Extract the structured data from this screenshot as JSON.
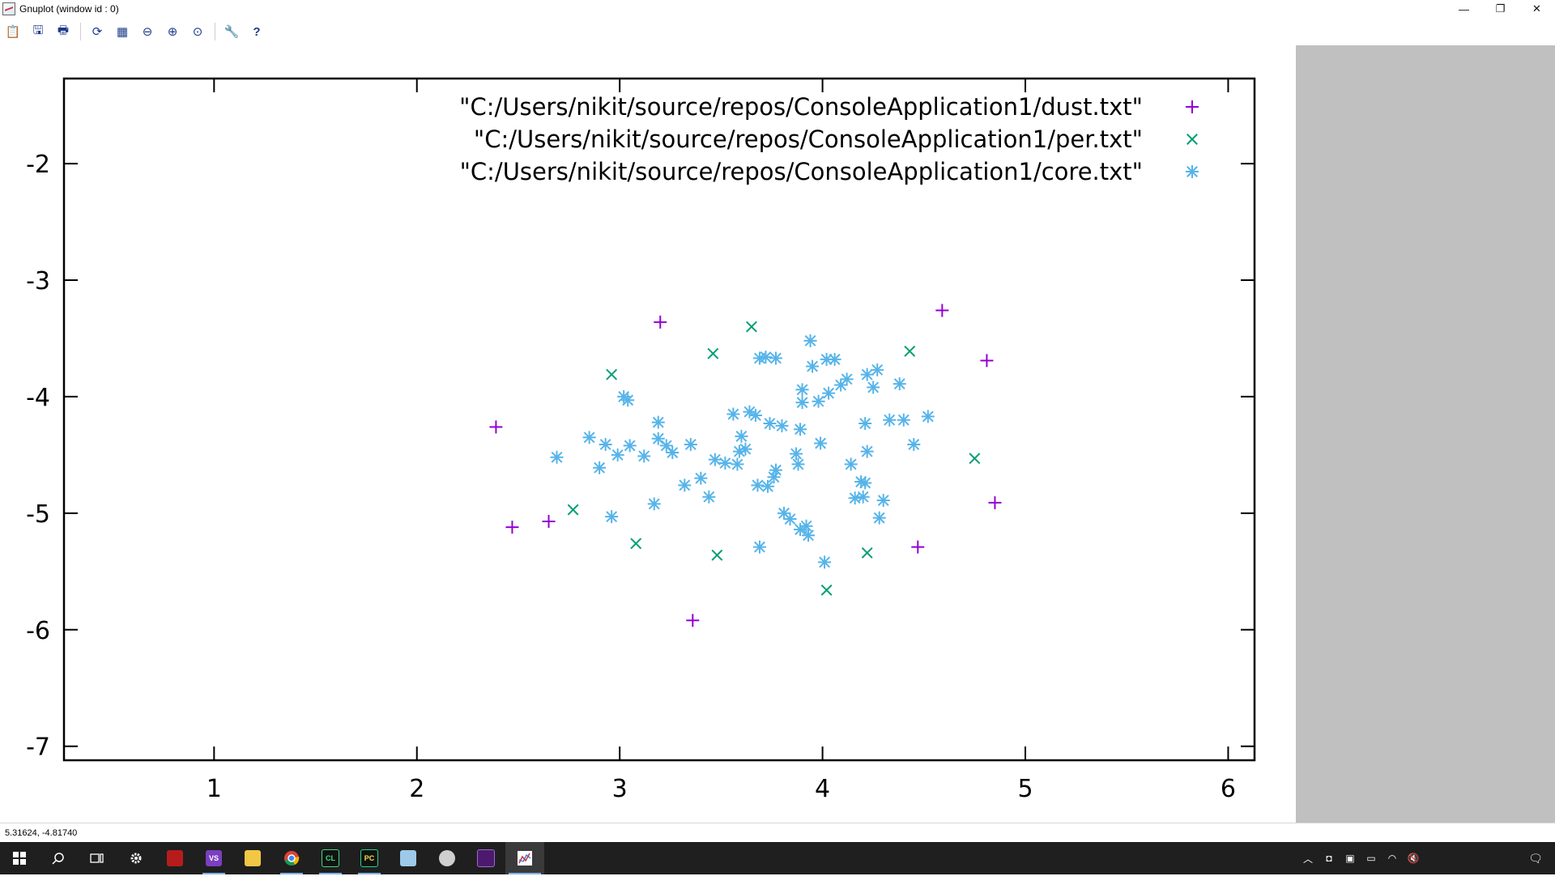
{
  "window": {
    "title": "Gnuplot (window id : 0)",
    "minimize": "—",
    "restore": "❐",
    "close": "✕"
  },
  "toolbar": {
    "buttons": [
      {
        "name": "copy-clipboard",
        "glyph": "📋"
      },
      {
        "name": "print-to-file",
        "glyph": "🖫"
      },
      {
        "name": "print",
        "glyph": "🖶"
      },
      {
        "name": "replot",
        "glyph": "⟳"
      },
      {
        "name": "grid",
        "glyph": "▦"
      },
      {
        "name": "zoom-previous",
        "glyph": "⊖"
      },
      {
        "name": "zoom-next",
        "glyph": "⊕"
      },
      {
        "name": "autoscale",
        "glyph": "⊙"
      },
      {
        "name": "options",
        "glyph": "🔧"
      },
      {
        "name": "help",
        "glyph": "?"
      }
    ]
  },
  "status": {
    "coordinates": "5.31624, -4.81740"
  },
  "colors": {
    "dust": "#9400d3",
    "per": "#009e73",
    "core": "#56b4e9",
    "gray_panel": "#c0c0c0"
  },
  "chart_data": {
    "type": "scatter",
    "title": "",
    "xlabel": "",
    "ylabel": "",
    "xlim": [
      0.26,
      6.13
    ],
    "ylim": [
      -7.12,
      -1.27
    ],
    "x_ticks": [
      1,
      2,
      3,
      4,
      5,
      6
    ],
    "y_ticks": [
      -2,
      -3,
      -4,
      -5,
      -6,
      -7
    ],
    "grid": false,
    "legend_position": "top-right",
    "series": [
      {
        "name": "\"C:/Users/nikit/source/repos/ConsoleApplication1/dust.txt\"",
        "marker": "plus",
        "color": "#9400d3",
        "points": [
          [
            2.39,
            -4.26
          ],
          [
            2.47,
            -5.12
          ],
          [
            2.65,
            -5.07
          ],
          [
            3.2,
            -3.36
          ],
          [
            3.36,
            -5.92
          ],
          [
            4.47,
            -5.29
          ],
          [
            4.59,
            -3.26
          ],
          [
            4.81,
            -3.69
          ],
          [
            4.85,
            -4.91
          ]
        ]
      },
      {
        "name": "\"C:/Users/nikit/source/repos/ConsoleApplication1/per.txt\"",
        "marker": "cross",
        "color": "#009e73",
        "points": [
          [
            2.77,
            -4.97
          ],
          [
            2.96,
            -3.81
          ],
          [
            3.08,
            -5.26
          ],
          [
            3.46,
            -3.63
          ],
          [
            3.48,
            -5.36
          ],
          [
            3.65,
            -3.4
          ],
          [
            4.02,
            -5.66
          ],
          [
            4.22,
            -5.34
          ],
          [
            4.43,
            -3.61
          ],
          [
            4.75,
            -4.53
          ]
        ]
      },
      {
        "name": "\"C:/Users/nikit/source/repos/ConsoleApplication1/core.txt\"",
        "marker": "star",
        "color": "#56b4e9",
        "points": [
          [
            2.69,
            -4.52
          ],
          [
            2.85,
            -4.35
          ],
          [
            2.9,
            -4.61
          ],
          [
            2.93,
            -4.41
          ],
          [
            2.96,
            -5.03
          ],
          [
            2.99,
            -4.5
          ],
          [
            3.02,
            -4.0
          ],
          [
            3.04,
            -4.03
          ],
          [
            3.05,
            -4.42
          ],
          [
            3.12,
            -4.51
          ],
          [
            3.17,
            -4.92
          ],
          [
            3.19,
            -4.22
          ],
          [
            3.19,
            -4.36
          ],
          [
            3.23,
            -4.42
          ],
          [
            3.26,
            -4.48
          ],
          [
            3.32,
            -4.76
          ],
          [
            3.35,
            -4.41
          ],
          [
            3.4,
            -4.7
          ],
          [
            3.44,
            -4.86
          ],
          [
            3.47,
            -4.54
          ],
          [
            3.52,
            -4.57
          ],
          [
            3.56,
            -4.15
          ],
          [
            3.58,
            -4.58
          ],
          [
            3.59,
            -4.47
          ],
          [
            3.6,
            -4.34
          ],
          [
            3.62,
            -4.45
          ],
          [
            3.64,
            -4.13
          ],
          [
            3.67,
            -4.16
          ],
          [
            3.68,
            -4.76
          ],
          [
            3.69,
            -5.29
          ],
          [
            3.69,
            -3.67
          ],
          [
            3.72,
            -3.66
          ],
          [
            3.73,
            -4.77
          ],
          [
            3.74,
            -4.23
          ],
          [
            3.76,
            -4.69
          ],
          [
            3.77,
            -4.63
          ],
          [
            3.77,
            -3.67
          ],
          [
            3.8,
            -4.25
          ],
          [
            3.81,
            -5.0
          ],
          [
            3.84,
            -5.05
          ],
          [
            3.87,
            -4.49
          ],
          [
            3.88,
            -4.58
          ],
          [
            3.89,
            -5.14
          ],
          [
            3.89,
            -4.28
          ],
          [
            3.9,
            -3.94
          ],
          [
            3.9,
            -4.05
          ],
          [
            3.92,
            -5.11
          ],
          [
            3.93,
            -5.19
          ],
          [
            3.94,
            -3.52
          ],
          [
            3.95,
            -3.74
          ],
          [
            3.98,
            -4.04
          ],
          [
            3.99,
            -4.4
          ],
          [
            4.01,
            -5.42
          ],
          [
            4.02,
            -3.68
          ],
          [
            4.03,
            -3.97
          ],
          [
            4.06,
            -3.68
          ],
          [
            4.09,
            -3.9
          ],
          [
            4.12,
            -3.85
          ],
          [
            4.14,
            -4.58
          ],
          [
            4.16,
            -4.87
          ],
          [
            4.19,
            -4.73
          ],
          [
            4.2,
            -4.86
          ],
          [
            4.21,
            -4.74
          ],
          [
            4.21,
            -4.23
          ],
          [
            4.22,
            -4.47
          ],
          [
            4.22,
            -3.81
          ],
          [
            4.25,
            -3.92
          ],
          [
            4.27,
            -3.77
          ],
          [
            4.28,
            -5.04
          ],
          [
            4.3,
            -4.89
          ],
          [
            4.33,
            -4.2
          ],
          [
            4.38,
            -3.89
          ],
          [
            4.4,
            -4.2
          ],
          [
            4.45,
            -4.41
          ],
          [
            4.52,
            -4.17
          ]
        ]
      }
    ]
  }
}
